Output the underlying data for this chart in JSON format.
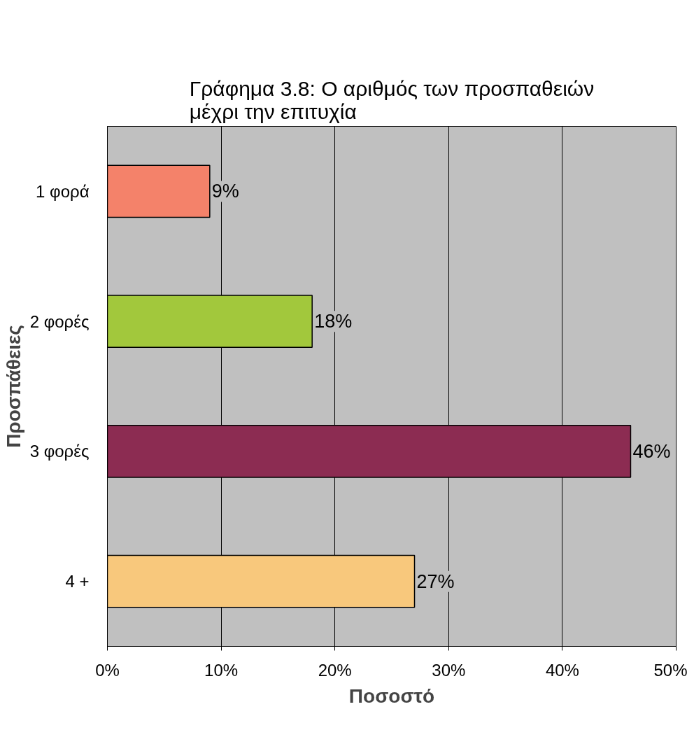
{
  "chart_data": {
    "type": "bar",
    "orientation": "horizontal",
    "title": "Γράφημα 3.8: Ο αριθμός των προσπαθειών\nμέχρι την επιτυχία",
    "xlabel": "Ποσοστό",
    "ylabel": "Προσπάθειες",
    "categories": [
      "1 φορά",
      "2 φορές",
      "3 φορές",
      "4 +"
    ],
    "values": [
      9,
      18,
      46,
      27
    ],
    "colors": [
      "#f4826a",
      "#a2c83c",
      "#8c2c52",
      "#f8c87c"
    ],
    "value_labels": [
      "9%",
      "18%",
      "46%",
      "27%"
    ],
    "xlim": [
      0,
      50
    ],
    "xticks": [
      {
        "value": 0,
        "label": "0%"
      },
      {
        "value": 10,
        "label": "10%"
      },
      {
        "value": 20,
        "label": "20%"
      },
      {
        "value": 30,
        "label": "30%"
      },
      {
        "value": 40,
        "label": "40%"
      },
      {
        "value": 50,
        "label": "50%"
      }
    ],
    "grid": "x"
  }
}
